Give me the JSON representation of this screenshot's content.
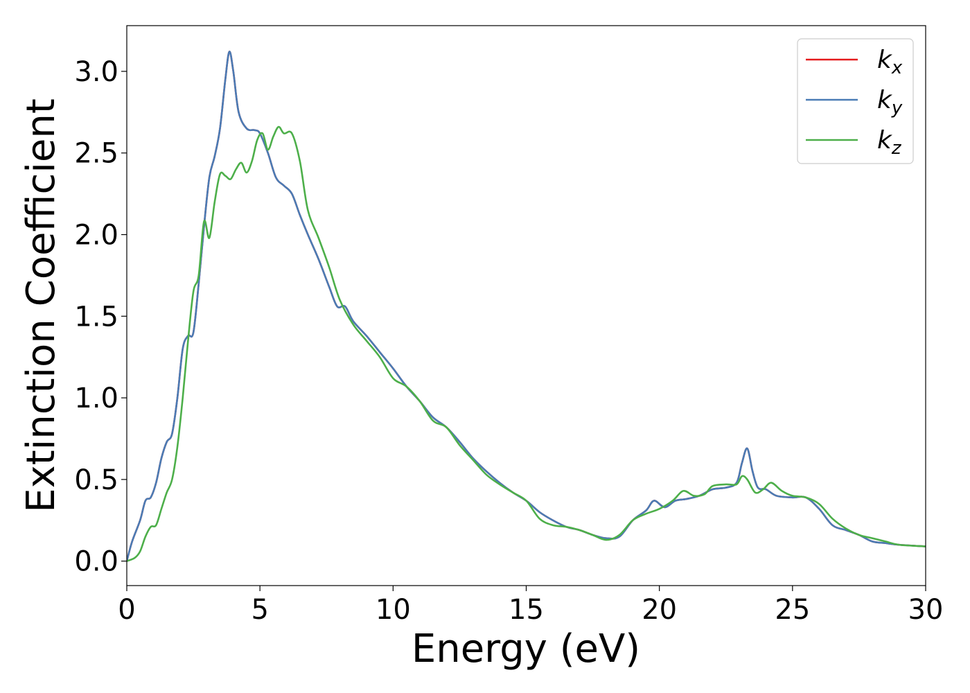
{
  "chart_data": {
    "type": "line",
    "title": "",
    "xlabel": "Energy (eV)",
    "ylabel": "Extinction Coefficient",
    "xlim": [
      0,
      30
    ],
    "ylim": [
      -0.15,
      3.28
    ],
    "xticks": [
      0,
      5,
      10,
      15,
      20,
      25,
      30
    ],
    "xtick_labels": [
      "0",
      "5",
      "10",
      "15",
      "20",
      "25",
      "30"
    ],
    "yticks": [
      0.0,
      0.5,
      1.0,
      1.5,
      2.0,
      2.5,
      3.0
    ],
    "ytick_labels": [
      "0.0",
      "0.5",
      "1.0",
      "1.5",
      "2.0",
      "2.5",
      "3.0"
    ],
    "grid": false,
    "legend_position": "top-right",
    "series": [
      {
        "name": "k_x",
        "legend_base": "k",
        "legend_sub": "x",
        "color": "#e41a1c",
        "points": [
          [
            0,
            0.0
          ],
          [
            0.2,
            0.12
          ],
          [
            0.5,
            0.25
          ],
          [
            0.7,
            0.37
          ],
          [
            0.9,
            0.39
          ],
          [
            1.1,
            0.48
          ],
          [
            1.3,
            0.63
          ],
          [
            1.5,
            0.73
          ],
          [
            1.7,
            0.78
          ],
          [
            1.9,
            1.0
          ],
          [
            2.1,
            1.3
          ],
          [
            2.3,
            1.38
          ],
          [
            2.5,
            1.4
          ],
          [
            2.7,
            1.7
          ],
          [
            2.9,
            2.05
          ],
          [
            3.1,
            2.35
          ],
          [
            3.3,
            2.48
          ],
          [
            3.5,
            2.65
          ],
          [
            3.7,
            2.95
          ],
          [
            3.85,
            3.12
          ],
          [
            4.0,
            3.0
          ],
          [
            4.2,
            2.75
          ],
          [
            4.5,
            2.65
          ],
          [
            4.8,
            2.64
          ],
          [
            5.0,
            2.62
          ],
          [
            5.3,
            2.5
          ],
          [
            5.6,
            2.35
          ],
          [
            5.9,
            2.3
          ],
          [
            6.2,
            2.25
          ],
          [
            6.5,
            2.12
          ],
          [
            6.8,
            2.0
          ],
          [
            7.2,
            1.85
          ],
          [
            7.6,
            1.68
          ],
          [
            7.9,
            1.56
          ],
          [
            8.2,
            1.56
          ],
          [
            8.5,
            1.47
          ],
          [
            9.0,
            1.38
          ],
          [
            9.5,
            1.28
          ],
          [
            10.0,
            1.18
          ],
          [
            10.5,
            1.07
          ],
          [
            11.0,
            0.98
          ],
          [
            11.5,
            0.88
          ],
          [
            12.0,
            0.82
          ],
          [
            12.5,
            0.73
          ],
          [
            13.0,
            0.63
          ],
          [
            13.5,
            0.55
          ],
          [
            14.0,
            0.48
          ],
          [
            14.5,
            0.42
          ],
          [
            15.0,
            0.37
          ],
          [
            15.5,
            0.3
          ],
          [
            16.0,
            0.25
          ],
          [
            16.5,
            0.21
          ],
          [
            17.0,
            0.19
          ],
          [
            17.5,
            0.16
          ],
          [
            18.0,
            0.14
          ],
          [
            18.5,
            0.15
          ],
          [
            19.0,
            0.25
          ],
          [
            19.5,
            0.31
          ],
          [
            19.8,
            0.37
          ],
          [
            20.2,
            0.33
          ],
          [
            20.6,
            0.37
          ],
          [
            21.0,
            0.38
          ],
          [
            21.5,
            0.4
          ],
          [
            22.0,
            0.44
          ],
          [
            22.5,
            0.45
          ],
          [
            22.9,
            0.48
          ],
          [
            23.1,
            0.6
          ],
          [
            23.3,
            0.69
          ],
          [
            23.5,
            0.55
          ],
          [
            23.7,
            0.45
          ],
          [
            24.0,
            0.44
          ],
          [
            24.4,
            0.4
          ],
          [
            25.0,
            0.39
          ],
          [
            25.5,
            0.39
          ],
          [
            26.0,
            0.32
          ],
          [
            26.5,
            0.22
          ],
          [
            27.0,
            0.19
          ],
          [
            27.5,
            0.16
          ],
          [
            28.0,
            0.12
          ],
          [
            28.5,
            0.11
          ],
          [
            29.0,
            0.1
          ],
          [
            30.0,
            0.09
          ]
        ]
      },
      {
        "name": "k_y",
        "legend_base": "k",
        "legend_sub": "y",
        "color": "#4a7cb5",
        "points": [
          [
            0,
            0.0
          ],
          [
            0.2,
            0.12
          ],
          [
            0.5,
            0.25
          ],
          [
            0.7,
            0.37
          ],
          [
            0.9,
            0.39
          ],
          [
            1.1,
            0.48
          ],
          [
            1.3,
            0.63
          ],
          [
            1.5,
            0.73
          ],
          [
            1.7,
            0.78
          ],
          [
            1.9,
            1.0
          ],
          [
            2.1,
            1.3
          ],
          [
            2.3,
            1.38
          ],
          [
            2.5,
            1.4
          ],
          [
            2.7,
            1.7
          ],
          [
            2.9,
            2.05
          ],
          [
            3.1,
            2.35
          ],
          [
            3.3,
            2.48
          ],
          [
            3.5,
            2.65
          ],
          [
            3.7,
            2.95
          ],
          [
            3.85,
            3.12
          ],
          [
            4.0,
            3.0
          ],
          [
            4.2,
            2.75
          ],
          [
            4.5,
            2.65
          ],
          [
            4.8,
            2.64
          ],
          [
            5.0,
            2.62
          ],
          [
            5.3,
            2.5
          ],
          [
            5.6,
            2.35
          ],
          [
            5.9,
            2.3
          ],
          [
            6.2,
            2.25
          ],
          [
            6.5,
            2.12
          ],
          [
            6.8,
            2.0
          ],
          [
            7.2,
            1.85
          ],
          [
            7.6,
            1.68
          ],
          [
            7.9,
            1.56
          ],
          [
            8.2,
            1.56
          ],
          [
            8.5,
            1.47
          ],
          [
            9.0,
            1.38
          ],
          [
            9.5,
            1.28
          ],
          [
            10.0,
            1.18
          ],
          [
            10.5,
            1.07
          ],
          [
            11.0,
            0.98
          ],
          [
            11.5,
            0.88
          ],
          [
            12.0,
            0.82
          ],
          [
            12.5,
            0.73
          ],
          [
            13.0,
            0.63
          ],
          [
            13.5,
            0.55
          ],
          [
            14.0,
            0.48
          ],
          [
            14.5,
            0.42
          ],
          [
            15.0,
            0.37
          ],
          [
            15.5,
            0.3
          ],
          [
            16.0,
            0.25
          ],
          [
            16.5,
            0.21
          ],
          [
            17.0,
            0.19
          ],
          [
            17.5,
            0.16
          ],
          [
            18.0,
            0.14
          ],
          [
            18.5,
            0.15
          ],
          [
            19.0,
            0.25
          ],
          [
            19.5,
            0.31
          ],
          [
            19.8,
            0.37
          ],
          [
            20.2,
            0.33
          ],
          [
            20.6,
            0.37
          ],
          [
            21.0,
            0.38
          ],
          [
            21.5,
            0.4
          ],
          [
            22.0,
            0.44
          ],
          [
            22.5,
            0.45
          ],
          [
            22.9,
            0.48
          ],
          [
            23.1,
            0.6
          ],
          [
            23.3,
            0.69
          ],
          [
            23.5,
            0.55
          ],
          [
            23.7,
            0.45
          ],
          [
            24.0,
            0.44
          ],
          [
            24.4,
            0.4
          ],
          [
            25.0,
            0.39
          ],
          [
            25.5,
            0.39
          ],
          [
            26.0,
            0.32
          ],
          [
            26.5,
            0.22
          ],
          [
            27.0,
            0.19
          ],
          [
            27.5,
            0.16
          ],
          [
            28.0,
            0.12
          ],
          [
            28.5,
            0.11
          ],
          [
            29.0,
            0.1
          ],
          [
            30.0,
            0.09
          ]
        ]
      },
      {
        "name": "k_z",
        "legend_base": "k",
        "legend_sub": "z",
        "color": "#4daf4a",
        "points": [
          [
            0,
            0.0
          ],
          [
            0.3,
            0.02
          ],
          [
            0.5,
            0.06
          ],
          [
            0.7,
            0.15
          ],
          [
            0.9,
            0.21
          ],
          [
            1.1,
            0.22
          ],
          [
            1.3,
            0.32
          ],
          [
            1.5,
            0.42
          ],
          [
            1.7,
            0.5
          ],
          [
            1.9,
            0.7
          ],
          [
            2.1,
            1.0
          ],
          [
            2.3,
            1.35
          ],
          [
            2.5,
            1.65
          ],
          [
            2.7,
            1.75
          ],
          [
            2.9,
            2.08
          ],
          [
            3.1,
            1.98
          ],
          [
            3.3,
            2.2
          ],
          [
            3.5,
            2.37
          ],
          [
            3.7,
            2.36
          ],
          [
            3.9,
            2.34
          ],
          [
            4.1,
            2.4
          ],
          [
            4.3,
            2.44
          ],
          [
            4.5,
            2.38
          ],
          [
            4.7,
            2.45
          ],
          [
            4.9,
            2.58
          ],
          [
            5.1,
            2.62
          ],
          [
            5.3,
            2.52
          ],
          [
            5.5,
            2.6
          ],
          [
            5.7,
            2.66
          ],
          [
            5.9,
            2.62
          ],
          [
            6.2,
            2.62
          ],
          [
            6.5,
            2.45
          ],
          [
            6.8,
            2.15
          ],
          [
            7.2,
            1.98
          ],
          [
            7.6,
            1.8
          ],
          [
            8.0,
            1.6
          ],
          [
            8.5,
            1.45
          ],
          [
            9.0,
            1.35
          ],
          [
            9.5,
            1.25
          ],
          [
            10.0,
            1.12
          ],
          [
            10.5,
            1.07
          ],
          [
            11.0,
            0.98
          ],
          [
            11.5,
            0.86
          ],
          [
            12.0,
            0.82
          ],
          [
            12.5,
            0.71
          ],
          [
            13.0,
            0.62
          ],
          [
            13.5,
            0.53
          ],
          [
            14.0,
            0.47
          ],
          [
            14.5,
            0.42
          ],
          [
            15.0,
            0.37
          ],
          [
            15.5,
            0.26
          ],
          [
            16.0,
            0.22
          ],
          [
            16.5,
            0.21
          ],
          [
            17.0,
            0.19
          ],
          [
            17.5,
            0.16
          ],
          [
            18.0,
            0.13
          ],
          [
            18.5,
            0.16
          ],
          [
            19.0,
            0.25
          ],
          [
            19.5,
            0.29
          ],
          [
            20.0,
            0.32
          ],
          [
            20.5,
            0.37
          ],
          [
            20.9,
            0.43
          ],
          [
            21.3,
            0.4
          ],
          [
            21.7,
            0.41
          ],
          [
            22.0,
            0.46
          ],
          [
            22.5,
            0.47
          ],
          [
            22.9,
            0.47
          ],
          [
            23.1,
            0.52
          ],
          [
            23.3,
            0.5
          ],
          [
            23.6,
            0.42
          ],
          [
            23.9,
            0.44
          ],
          [
            24.2,
            0.48
          ],
          [
            24.6,
            0.43
          ],
          [
            25.0,
            0.4
          ],
          [
            25.5,
            0.39
          ],
          [
            26.0,
            0.35
          ],
          [
            26.5,
            0.26
          ],
          [
            27.0,
            0.2
          ],
          [
            27.5,
            0.16
          ],
          [
            28.0,
            0.14
          ],
          [
            28.5,
            0.12
          ],
          [
            29.0,
            0.1
          ],
          [
            30.0,
            0.09
          ]
        ]
      }
    ]
  }
}
